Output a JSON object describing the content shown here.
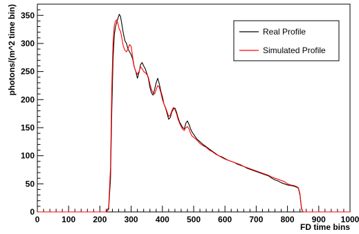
{
  "chart_data": {
    "type": "line",
    "title": "",
    "xlabel": "FD  time  bins",
    "ylabel": "photons/(m^2  time  bin)",
    "xlim": [
      0,
      1000
    ],
    "ylim": [
      0,
      370
    ],
    "x_ticks": [
      "0",
      "100",
      "200",
      "300",
      "400",
      "500",
      "600",
      "700",
      "800",
      "900",
      "1000"
    ],
    "y_ticks": [
      "0",
      "50",
      "100",
      "150",
      "200",
      "250",
      "300",
      "350"
    ],
    "grid": false,
    "legend_position": "top-right",
    "series": [
      {
        "name": "Real Profile",
        "color": "#000000",
        "x": [
          0,
          220,
          228,
          234,
          238,
          242,
          246,
          250,
          254,
          258,
          262,
          266,
          270,
          275,
          280,
          285,
          290,
          295,
          300,
          305,
          310,
          315,
          320,
          325,
          330,
          335,
          340,
          345,
          350,
          355,
          360,
          365,
          370,
          375,
          380,
          385,
          390,
          395,
          400,
          405,
          410,
          415,
          420,
          425,
          430,
          435,
          440,
          445,
          450,
          455,
          460,
          465,
          470,
          475,
          480,
          485,
          490,
          495,
          500,
          510,
          520,
          530,
          540,
          550,
          560,
          570,
          580,
          590,
          600,
          610,
          620,
          630,
          640,
          650,
          660,
          670,
          680,
          690,
          700,
          710,
          720,
          730,
          740,
          750,
          760,
          770,
          780,
          790,
          800,
          810,
          820,
          830,
          835,
          840,
          845,
          850,
          860,
          1000
        ],
        "y": [
          0,
          0,
          5,
          60,
          180,
          270,
          315,
          330,
          338,
          345,
          352,
          348,
          335,
          318,
          305,
          300,
          290,
          285,
          280,
          272,
          258,
          250,
          238,
          248,
          262,
          266,
          260,
          255,
          247,
          238,
          222,
          212,
          208,
          218,
          230,
          238,
          228,
          215,
          205,
          192,
          185,
          175,
          165,
          168,
          178,
          183,
          185,
          178,
          168,
          160,
          155,
          150,
          148,
          158,
          162,
          156,
          148,
          142,
          138,
          130,
          125,
          120,
          116,
          112,
          108,
          104,
          100,
          98,
          95,
          92,
          90,
          88,
          85,
          83,
          81,
          78,
          76,
          74,
          72,
          70,
          68,
          66,
          64,
          60,
          57,
          55,
          52,
          50,
          48,
          47,
          46,
          44,
          42,
          30,
          5,
          0,
          0,
          0
        ]
      },
      {
        "name": "Simulated Profile",
        "color": "#ff0000",
        "x": [
          0,
          220,
          228,
          234,
          238,
          242,
          246,
          250,
          254,
          258,
          262,
          266,
          270,
          275,
          280,
          285,
          290,
          295,
          300,
          305,
          310,
          315,
          320,
          325,
          330,
          335,
          340,
          345,
          350,
          355,
          360,
          365,
          370,
          375,
          380,
          385,
          390,
          395,
          400,
          405,
          410,
          415,
          420,
          425,
          430,
          435,
          440,
          445,
          450,
          455,
          460,
          465,
          470,
          475,
          480,
          485,
          490,
          495,
          500,
          510,
          520,
          530,
          540,
          550,
          560,
          570,
          580,
          590,
          600,
          610,
          620,
          630,
          640,
          650,
          660,
          670,
          680,
          690,
          700,
          710,
          720,
          730,
          740,
          750,
          760,
          770,
          780,
          790,
          800,
          810,
          820,
          830,
          835,
          840,
          845,
          850,
          860,
          1000
        ],
        "y": [
          0,
          0,
          8,
          80,
          220,
          300,
          332,
          340,
          342,
          335,
          325,
          322,
          310,
          295,
          288,
          285,
          290,
          298,
          295,
          275,
          258,
          250,
          245,
          250,
          258,
          255,
          250,
          248,
          245,
          240,
          228,
          218,
          212,
          210,
          218,
          225,
          222,
          212,
          200,
          192,
          186,
          178,
          170,
          172,
          180,
          186,
          183,
          175,
          165,
          158,
          152,
          147,
          145,
          150,
          152,
          148,
          140,
          135,
          133,
          128,
          122,
          118,
          115,
          110,
          107,
          103,
          100,
          97,
          94,
          92,
          90,
          88,
          86,
          84,
          81,
          79,
          77,
          75,
          73,
          71,
          69,
          67,
          65,
          62,
          60,
          58,
          56,
          54,
          50,
          48,
          47,
          45,
          43,
          32,
          6,
          0,
          0,
          0
        ]
      }
    ]
  }
}
